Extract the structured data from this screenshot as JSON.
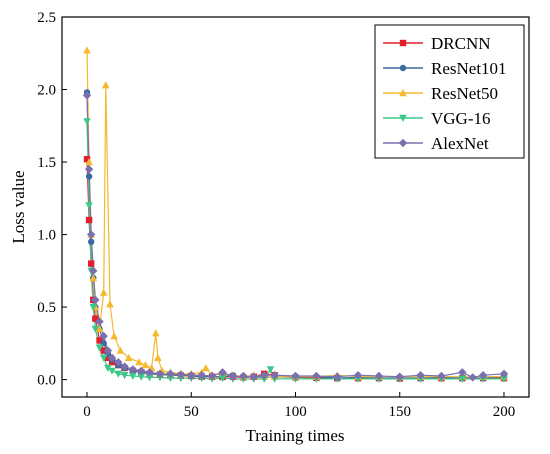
{
  "chart_data": {
    "type": "line",
    "xlabel": "Training times",
    "ylabel": "Loss value",
    "xlim": [
      -12,
      212
    ],
    "ylim": [
      -0.12,
      2.5
    ],
    "xticks": [
      0,
      50,
      100,
      150,
      200
    ],
    "yticks": [
      0.0,
      0.5,
      1.0,
      1.5,
      2.0,
      2.5
    ],
    "xtick_labels": [
      "0",
      "50",
      "100",
      "150",
      "200"
    ],
    "ytick_labels": [
      "0.0",
      "0.5",
      "1.0",
      "1.5",
      "2.0",
      "2.5"
    ],
    "legend_position": "top-right",
    "grid": false,
    "series": [
      {
        "name": "DRCNN",
        "color": "#e0202a",
        "marker": "square",
        "x": [
          0,
          1,
          2,
          3,
          4,
          6,
          8,
          10,
          12,
          15,
          18,
          22,
          26,
          30,
          35,
          40,
          45,
          50,
          55,
          60,
          65,
          70,
          75,
          80,
          85,
          90,
          100,
          110,
          120,
          130,
          140,
          150,
          160,
          170,
          180,
          190,
          200
        ],
        "y": [
          1.52,
          1.1,
          0.8,
          0.55,
          0.42,
          0.27,
          0.2,
          0.15,
          0.12,
          0.1,
          0.08,
          0.06,
          0.05,
          0.04,
          0.035,
          0.03,
          0.028,
          0.025,
          0.02,
          0.02,
          0.018,
          0.02,
          0.015,
          0.02,
          0.04,
          0.03,
          0.015,
          0.012,
          0.01,
          0.01,
          0.01,
          0.008,
          0.01,
          0.01,
          0.01,
          0.01,
          0.01
        ]
      },
      {
        "name": "ResNet101",
        "color": "#3a6aa0",
        "marker": "circle",
        "x": [
          0,
          1,
          2,
          3,
          4,
          6,
          8,
          10,
          12,
          15,
          18,
          22,
          26,
          30,
          35,
          40,
          45,
          50,
          55,
          60,
          65,
          70,
          75,
          80,
          85,
          90,
          100,
          110,
          120,
          130,
          140,
          150,
          160,
          170,
          180,
          190,
          200
        ],
        "y": [
          1.98,
          1.4,
          0.95,
          0.7,
          0.5,
          0.35,
          0.25,
          0.18,
          0.14,
          0.1,
          0.08,
          0.06,
          0.05,
          0.04,
          0.035,
          0.03,
          0.03,
          0.025,
          0.02,
          0.02,
          0.02,
          0.03,
          0.02,
          0.02,
          0.015,
          0.02,
          0.015,
          0.02,
          0.01,
          0.015,
          0.01,
          0.01,
          0.01,
          0.015,
          0.01,
          0.01,
          0.02
        ]
      },
      {
        "name": "ResNet50",
        "color": "#f5b82e",
        "marker": "triangle-up",
        "x": [
          0,
          1,
          2,
          3,
          4,
          6,
          8,
          9,
          11,
          13,
          16,
          20,
          25,
          28,
          31,
          33,
          34,
          36,
          40,
          45,
          50,
          55,
          57,
          60,
          65,
          70,
          75,
          80,
          85,
          90,
          100,
          110,
          120,
          130,
          140,
          150,
          160,
          170,
          180,
          190,
          200
        ],
        "y": [
          2.27,
          1.5,
          1.0,
          0.7,
          0.5,
          0.35,
          0.6,
          2.03,
          0.52,
          0.3,
          0.2,
          0.15,
          0.12,
          0.1,
          0.08,
          0.32,
          0.15,
          0.06,
          0.05,
          0.04,
          0.04,
          0.05,
          0.08,
          0.03,
          0.04,
          0.03,
          0.02,
          0.03,
          0.02,
          0.02,
          0.02,
          0.02,
          0.03,
          0.02,
          0.02,
          0.02,
          0.02,
          0.02,
          0.02,
          0.02,
          0.02
        ]
      },
      {
        "name": "VGG-16",
        "color": "#3bc98a",
        "marker": "triangle-down",
        "x": [
          0,
          1,
          2,
          3,
          4,
          6,
          8,
          10,
          12,
          15,
          18,
          22,
          26,
          30,
          35,
          40,
          45,
          50,
          55,
          60,
          65,
          70,
          75,
          80,
          85,
          88,
          90,
          100,
          110,
          120,
          130,
          140,
          150,
          160,
          170,
          180,
          190,
          200
        ],
        "y": [
          1.78,
          1.2,
          0.75,
          0.5,
          0.35,
          0.22,
          0.15,
          0.08,
          0.06,
          0.04,
          0.03,
          0.025,
          0.02,
          0.015,
          0.015,
          0.01,
          0.01,
          0.01,
          0.01,
          0.005,
          0.01,
          0.005,
          0.005,
          0.005,
          0.005,
          0.07,
          0.005,
          0.005,
          0.005,
          0.005,
          0.005,
          0.005,
          0.005,
          0.005,
          0.005,
          0.005,
          0.005,
          0.005
        ]
      },
      {
        "name": "AlexNet",
        "color": "#7b6fb0",
        "marker": "diamond",
        "x": [
          0,
          1,
          2,
          3,
          4,
          6,
          8,
          10,
          12,
          15,
          18,
          22,
          26,
          30,
          35,
          40,
          45,
          50,
          55,
          60,
          65,
          70,
          75,
          80,
          85,
          90,
          100,
          110,
          120,
          130,
          140,
          150,
          160,
          170,
          180,
          185,
          190,
          200
        ],
        "y": [
          1.96,
          1.45,
          1.0,
          0.75,
          0.55,
          0.4,
          0.3,
          0.2,
          0.15,
          0.12,
          0.09,
          0.07,
          0.06,
          0.05,
          0.04,
          0.04,
          0.035,
          0.03,
          0.03,
          0.025,
          0.05,
          0.02,
          0.025,
          0.02,
          0.03,
          0.03,
          0.025,
          0.025,
          0.02,
          0.03,
          0.025,
          0.02,
          0.03,
          0.025,
          0.05,
          0.015,
          0.03,
          0.04
        ]
      }
    ]
  }
}
